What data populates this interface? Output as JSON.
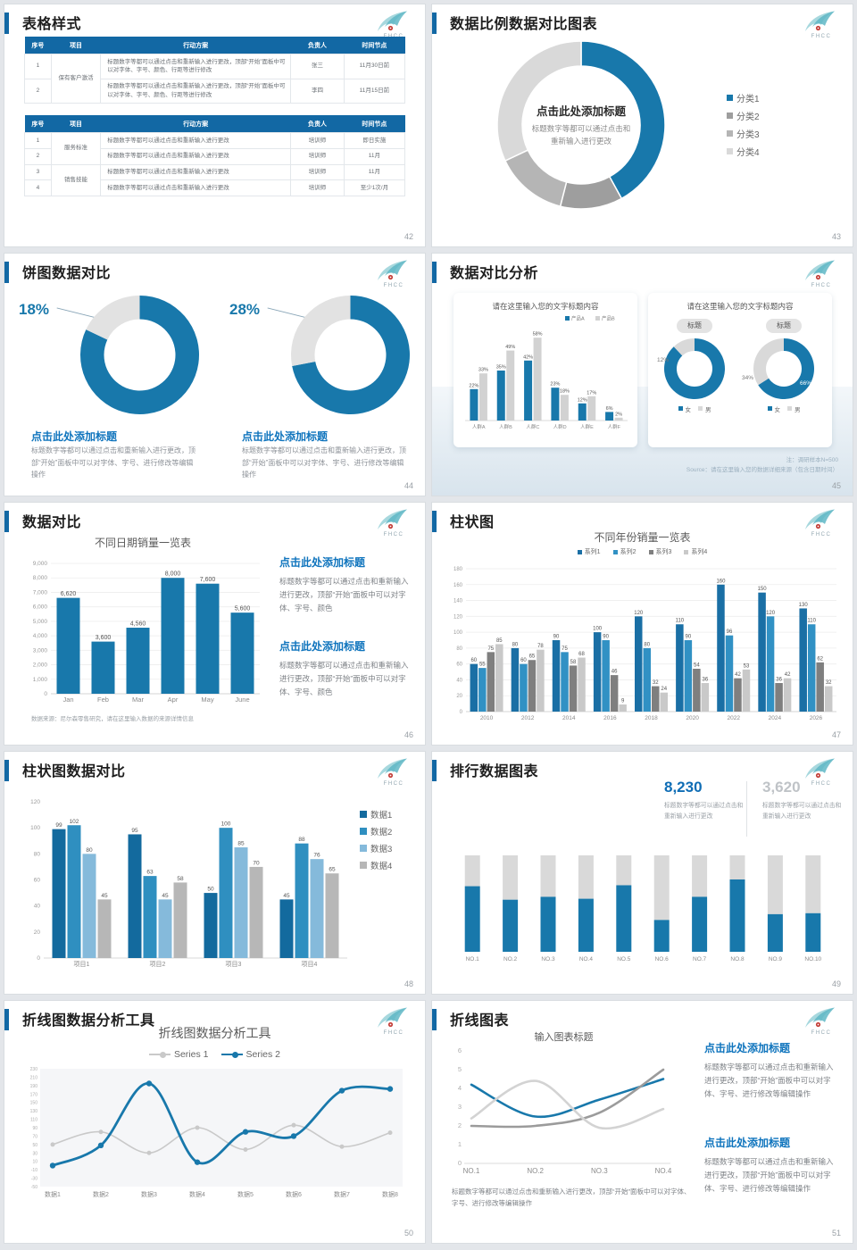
{
  "logo": {
    "text": "FHCC"
  },
  "colors": {
    "primary_blue": "#1878ab",
    "heading_blue": "#0f74bd",
    "table_header_blue": "#1268a4",
    "stat_blue": "#0f6db5",
    "stat_gray": "#bfc3c7",
    "gray_light": "#d9d9d9",
    "gray_mid": "#b5b5b5",
    "gray_dark": "#9e9e9e"
  },
  "slides": {
    "s42": {
      "title": "表格样式",
      "page": "42",
      "table1": {
        "headers": [
          "序号",
          "项目",
          "行动方案",
          "负责人",
          "时间节点"
        ],
        "col_widths": [
          "7%",
          "13%",
          "50%",
          "14%",
          "16%"
        ],
        "groups": [
          {
            "project": "保有客户激活",
            "rows": [
              {
                "no": "1",
                "plan": "标题数字等都可以通过点击和重新输入进行更改，顶部“开始”面板中可以对字体、字号、颜色、行距等进行修改",
                "owner": "张三",
                "time": "11月30日前"
              },
              {
                "no": "2",
                "plan": "标题数字等都可以通过点击和重新输入进行更改，顶部“开始”面板中可以对字体、字号、颜色、行距等进行修改",
                "owner": "李四",
                "time": "11月15日前"
              }
            ]
          }
        ]
      },
      "table2": {
        "headers": [
          "序号",
          "项目",
          "行动方案",
          "负责人",
          "时间节点"
        ],
        "col_widths": [
          "7%",
          "13%",
          "50%",
          "14%",
          "16%"
        ],
        "groups": [
          {
            "project": "服务标准",
            "rows": [
              {
                "no": "1",
                "plan": "标题数字等都可以通过点击和重新输入进行更改",
                "owner": "培训师",
                "time": "即日实施"
              },
              {
                "no": "2",
                "plan": "标题数字等都可以通过点击和重新输入进行更改",
                "owner": "培训师",
                "time": "11月"
              }
            ]
          },
          {
            "project": "销售技能",
            "rows": [
              {
                "no": "3",
                "plan": "标题数字等都可以通过点击和重新输入进行更改",
                "owner": "培训师",
                "time": "11月"
              },
              {
                "no": "4",
                "plan": "标题数字等都可以通过点击和重新输入进行更改",
                "owner": "培训师",
                "time": "至少1次/月"
              }
            ]
          }
        ]
      }
    },
    "s43": {
      "title": "数据比例数据对比图表",
      "page": "43",
      "center_title": "点击此处添加标题",
      "center_body": "标题数字等都可以通过点击和重新输入进行更改"
    },
    "s44": {
      "title": "饼图数据对比",
      "page": "44",
      "left": {
        "callout": "18%",
        "caption_title": "点击此处添加标题",
        "caption_body": "标题数字等都可以通过点击和重新输入进行更改，顶部“开始”面板中可以对字体、字号、进行修改等编辑操作"
      },
      "right": {
        "callout": "28%",
        "caption_title": "点击此处添加标题",
        "caption_body": "标题数字等都可以通过点击和重新输入进行更改，顶部“开始”面板中可以对字体、字号、进行修改等编辑操作"
      }
    },
    "s45": {
      "title": "数据对比分析",
      "page": "45",
      "card1_title": "请在这里输入您的文字标题内容",
      "card2_title": "请在这里输入您的文字标题内容",
      "pill1": "标题",
      "pill2": "标题",
      "donut_labels": {
        "a_out": "12%",
        "a_in": "88%",
        "b_out": "34%",
        "b_in": "66%"
      },
      "note1": "注：调研样本N=500",
      "note2": "Source：请在这里输入您的数据详细来源（包含日期时间）"
    },
    "s46": {
      "title": "数据对比",
      "page": "46",
      "chart_title": "不同日期销量一览表",
      "note": "数据来源：尼尔森零售研究，请在这里输入数据的来源详情信息",
      "blocks": [
        {
          "title": "点击此处添加标题",
          "body": "标题数字等都可以通过点击和重新输入进行更改，顶部“开始”面板中可以对字体、字号、颜色"
        },
        {
          "title": "点击此处添加标题",
          "body": "标题数字等都可以通过点击和重新输入进行更改，顶部“开始”面板中可以对字体、字号、颜色"
        }
      ]
    },
    "s47": {
      "title": "柱状图",
      "page": "47",
      "chart_title": "不同年份销量一览表"
    },
    "s48": {
      "title": "柱状图数据对比",
      "page": "48"
    },
    "s49": {
      "title": "排行数据图表",
      "page": "49",
      "stat1": {
        "value": "8,230",
        "body": "标题数字等都可以通过点击和重新输入进行更改"
      },
      "stat2": {
        "value": "3,620",
        "body": "标题数字等都可以通过点击和重新输入进行更改"
      }
    },
    "s50": {
      "title": "折线图数据分析工具",
      "page": "50",
      "chart_title": "折线图数据分析工具"
    },
    "s51": {
      "title": "折线图表",
      "page": "51",
      "chart_title": "输入图表标题",
      "blocks": [
        {
          "title": "点击此处添加标题",
          "body": "标题数字等都可以通过点击和重新输入进行更改，顶部“开始”面板中可以对字体、字号、进行修改等编辑操作"
        },
        {
          "title": "点击此处添加标题",
          "body": "标题数字等都可以通过点击和重新输入进行更改，顶部“开始”面板中可以对字体、字号、进行修改等编辑操作"
        }
      ],
      "note": "标题数字等都可以通过点击和重新输入进行更改，顶部“开始”面板中可以对字体、字号、进行修改等编辑操作"
    }
  },
  "chart_data": [
    {
      "id": "c43",
      "slide": 43,
      "type": "pie",
      "donut": true,
      "labels": [
        "分类1",
        "分类2",
        "分类3",
        "分类4"
      ],
      "values": [
        42,
        12,
        14,
        32
      ],
      "colors": [
        "#1878ab",
        "#9e9e9e",
        "#b5b5b5",
        "#d9d9d9"
      ],
      "legend_position": "right"
    },
    {
      "id": "c44a",
      "slide": 44,
      "type": "pie",
      "donut": true,
      "labels": [
        "数值",
        "其余"
      ],
      "values": [
        82,
        18
      ],
      "colors": [
        "#1878ab",
        "#e2e2e2"
      ],
      "callout": "18%"
    },
    {
      "id": "c44b",
      "slide": 44,
      "type": "pie",
      "donut": true,
      "labels": [
        "数值",
        "其余"
      ],
      "values": [
        72,
        28
      ],
      "colors": [
        "#1878ab",
        "#e2e2e2"
      ],
      "callout": "28%"
    },
    {
      "id": "c45bar",
      "slide": 45,
      "type": "bar",
      "title": "请在这里输入您的文字标题内容",
      "categories": [
        "人群A",
        "人群B",
        "人群C",
        "人群D",
        "人群E",
        "人群F"
      ],
      "series": [
        {
          "name": "产品A",
          "color": "#1878ab",
          "values": [
            22,
            35,
            42,
            23,
            12,
            6
          ]
        },
        {
          "name": "产品B",
          "color": "#d2d2d2",
          "values": [
            33,
            49,
            58,
            18,
            17,
            2
          ]
        }
      ],
      "unit": "%",
      "ylim": [
        0,
        65
      ],
      "grid": false,
      "legend_position": "top-right"
    },
    {
      "id": "c45da",
      "slide": 45,
      "type": "pie",
      "donut": true,
      "labels": [
        "女",
        "男"
      ],
      "values": [
        88,
        12
      ],
      "colors": [
        "#1878ab",
        "#d9d9d9"
      ]
    },
    {
      "id": "c45db",
      "slide": 45,
      "type": "pie",
      "donut": true,
      "labels": [
        "女",
        "男"
      ],
      "values": [
        66,
        34
      ],
      "colors": [
        "#1878ab",
        "#d9d9d9"
      ]
    },
    {
      "id": "c46",
      "slide": 46,
      "type": "bar",
      "title": "不同日期销量一览表",
      "categories": [
        "Jan",
        "Feb",
        "Mar",
        "Apr",
        "May",
        "June"
      ],
      "series": [
        {
          "name": "销量",
          "color": "#1878ab",
          "values": [
            6620,
            3600,
            4560,
            8000,
            7600,
            5600
          ]
        }
      ],
      "ylim": [
        0,
        9000
      ],
      "ytick": 1000,
      "grid": true
    },
    {
      "id": "c47",
      "slide": 47,
      "type": "bar",
      "title": "不同年份销量一览表",
      "categories": [
        "2010",
        "2012",
        "2014",
        "2016",
        "2018",
        "2020",
        "2022",
        "2024",
        "2026"
      ],
      "series": [
        {
          "name": "系列1",
          "color": "#1a6fa5",
          "values": [
            60,
            80,
            90,
            100,
            120,
            110,
            160,
            150,
            130
          ]
        },
        {
          "name": "系列2",
          "color": "#3191c4",
          "values": [
            55,
            60,
            75,
            90,
            80,
            90,
            96,
            120,
            110
          ]
        },
        {
          "name": "系列3",
          "color": "#7f7f7f",
          "values": [
            75,
            65,
            58,
            46,
            32,
            54,
            42,
            36,
            62
          ]
        },
        {
          "name": "系列4",
          "color": "#c9c9c9",
          "values": [
            85,
            78,
            68,
            9,
            24,
            36,
            53,
            42,
            32
          ]
        }
      ],
      "ylim": [
        0,
        180
      ],
      "ytick": 20,
      "grid": true,
      "legend_position": "top"
    },
    {
      "id": "c48",
      "slide": 48,
      "type": "bar",
      "categories": [
        "项目1",
        "项目2",
        "项目3",
        "项目4"
      ],
      "series": [
        {
          "name": "数据1",
          "color": "#136a9e",
          "values": [
            99,
            95,
            50,
            45
          ]
        },
        {
          "name": "数据2",
          "color": "#2f8fc0",
          "values": [
            102,
            63,
            100,
            88
          ]
        },
        {
          "name": "数据3",
          "color": "#85badb",
          "values": [
            80,
            45,
            85,
            76
          ]
        },
        {
          "name": "数据4",
          "color": "#b7b7b7",
          "values": [
            45,
            58,
            70,
            65
          ]
        }
      ],
      "ylim": [
        0,
        120
      ],
      "ytick": 20,
      "grid": false,
      "legend_position": "right"
    },
    {
      "id": "c49",
      "slide": 49,
      "type": "bar",
      "subtype": "stacked-progress",
      "categories": [
        "NO.1",
        "NO.2",
        "NO.3",
        "NO.4",
        "NO.5",
        "NO.6",
        "NO.7",
        "NO.8",
        "NO.9",
        "NO.10"
      ],
      "series": [
        {
          "name": "完成值",
          "color": "#1878ab",
          "values": [
            68,
            54,
            57,
            55,
            69,
            33,
            57,
            75,
            39,
            40
          ]
        },
        {
          "name": "总量",
          "color": "#d9d9d9",
          "values": [
            100,
            100,
            100,
            100,
            100,
            100,
            100,
            100,
            100,
            100
          ]
        }
      ],
      "ylim": [
        0,
        100
      ]
    },
    {
      "id": "c50",
      "slide": 50,
      "type": "line",
      "title": "折线图数据分析工具",
      "categories": [
        "数据1",
        "数据2",
        "数据3",
        "数据4",
        "数据5",
        "数据6",
        "数据7",
        "数据8"
      ],
      "series": [
        {
          "name": "Series 1",
          "color": "#c9c9c9",
          "values": [
            50,
            80,
            30,
            90,
            38,
            96,
            45,
            78
          ]
        },
        {
          "name": "Series 2",
          "color": "#1878ab",
          "values": [
            0,
            48,
            195,
            8,
            80,
            70,
            178,
            182
          ]
        }
      ],
      "ylim": [
        -50,
        230
      ],
      "ytick": 20,
      "legend_position": "top"
    },
    {
      "id": "c51",
      "slide": 51,
      "type": "line",
      "title": "输入图表标题",
      "categories": [
        "NO.1",
        "NO.2",
        "NO.3",
        "NO.4"
      ],
      "series": [
        {
          "name": "系列1",
          "color": "#1878ab",
          "values": [
            4.2,
            2.5,
            3.4,
            4.5
          ]
        },
        {
          "name": "系列2",
          "color": "#9b9b9b",
          "values": [
            2,
            2,
            2.7,
            5
          ]
        },
        {
          "name": "系列3",
          "color": "#d3d3d3",
          "values": [
            2.4,
            4.4,
            1.9,
            2.9
          ]
        }
      ],
      "ylim": [
        0,
        6
      ],
      "ytick": 1
    }
  ]
}
